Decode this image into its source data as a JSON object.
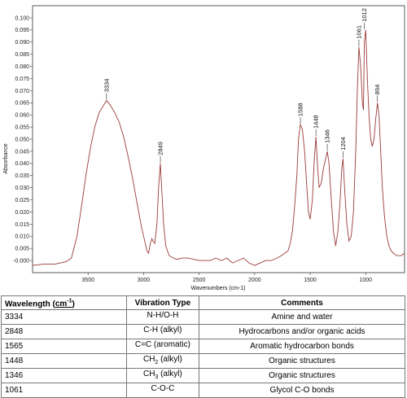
{
  "chart_data": {
    "type": "line",
    "xlabel": "Wavenumbers (cm-1)",
    "ylabel": "Absorbance",
    "xlim": [
      4000,
      650
    ],
    "ylim": [
      -0.005,
      0.105
    ],
    "x_ticks": [
      3500,
      3000,
      2500,
      2000,
      1500,
      1000
    ],
    "y_ticks": [
      -0.0,
      0.005,
      0.01,
      0.015,
      0.02,
      0.025,
      0.03,
      0.035,
      0.04,
      0.045,
      0.05,
      0.055,
      0.06,
      0.065,
      0.07,
      0.075,
      0.08,
      0.085,
      0.09,
      0.095,
      0.1
    ],
    "y_tick_labels": [
      "-0.000",
      "0.005",
      "0.010",
      "0.015",
      "0.020",
      "0.025",
      "0.030",
      "0.035",
      "0.040",
      "0.045",
      "0.050",
      "0.055",
      "0.060",
      "0.065",
      "0.070",
      "0.075",
      "0.080",
      "0.085",
      "0.090",
      "0.095",
      "0.100"
    ],
    "grid": false,
    "line_color": "#9b3a3a",
    "series": [
      {
        "x": [
          4000,
          3900,
          3800,
          3700,
          3650,
          3600,
          3560,
          3520,
          3480,
          3440,
          3400,
          3360,
          3334,
          3300,
          3260,
          3220,
          3180,
          3140,
          3100,
          3060,
          3020,
          2990,
          2970,
          2955,
          2940,
          2925,
          2915,
          2900,
          2880,
          2865,
          2849,
          2835,
          2820,
          2800,
          2770,
          2730,
          2700,
          2650,
          2600,
          2500,
          2400,
          2350,
          2300,
          2250,
          2200,
          2150,
          2100,
          2050,
          2000,
          1950,
          1900,
          1850,
          1800,
          1760,
          1730,
          1700,
          1680,
          1660,
          1640,
          1620,
          1605,
          1588,
          1570,
          1550,
          1530,
          1515,
          1500,
          1480,
          1465,
          1448,
          1435,
          1420,
          1400,
          1380,
          1360,
          1346,
          1330,
          1310,
          1290,
          1270,
          1250,
          1230,
          1215,
          1204,
          1190,
          1170,
          1150,
          1130,
          1110,
          1090,
          1075,
          1061,
          1045,
          1030,
          1020,
          1012,
          1000,
          985,
          970,
          955,
          940,
          925,
          910,
          894,
          880,
          865,
          850,
          830,
          810,
          790,
          770,
          750,
          720,
          700,
          680,
          650
        ],
        "y": [
          -0.002,
          -0.0015,
          -0.0015,
          -0.0005,
          0.001,
          0.01,
          0.022,
          0.035,
          0.046,
          0.055,
          0.061,
          0.064,
          0.066,
          0.064,
          0.061,
          0.057,
          0.051,
          0.043,
          0.034,
          0.024,
          0.014,
          0.008,
          0.004,
          0.003,
          0.007,
          0.009,
          0.008,
          0.007,
          0.015,
          0.03,
          0.04,
          0.028,
          0.015,
          0.006,
          0.002,
          0.001,
          0.0005,
          0.001,
          0.001,
          0.0,
          0.0,
          0.001,
          0.0,
          0.001,
          -0.001,
          0.0,
          0.001,
          -0.001,
          -0.002,
          -0.001,
          0.0,
          0.0,
          0.001,
          0.002,
          0.003,
          0.004,
          0.007,
          0.012,
          0.022,
          0.035,
          0.05,
          0.056,
          0.054,
          0.045,
          0.03,
          0.02,
          0.017,
          0.025,
          0.04,
          0.051,
          0.04,
          0.03,
          0.032,
          0.038,
          0.042,
          0.045,
          0.04,
          0.025,
          0.012,
          0.006,
          0.012,
          0.025,
          0.038,
          0.042,
          0.03,
          0.015,
          0.008,
          0.01,
          0.02,
          0.045,
          0.07,
          0.088,
          0.08,
          0.065,
          0.062,
          0.09,
          0.095,
          0.075,
          0.06,
          0.05,
          0.047,
          0.05,
          0.058,
          0.065,
          0.06,
          0.045,
          0.03,
          0.018,
          0.01,
          0.006,
          0.004,
          0.003,
          0.002,
          0.002,
          0.002,
          0.003
        ]
      }
    ],
    "peak_labels": [
      {
        "x": 3334,
        "y": 0.066,
        "label": "3334"
      },
      {
        "x": 2849,
        "y": 0.04,
        "label": "2849"
      },
      {
        "x": 1588,
        "y": 0.056,
        "label": "1588"
      },
      {
        "x": 1448,
        "y": 0.051,
        "label": "1448"
      },
      {
        "x": 1346,
        "y": 0.045,
        "label": "1346"
      },
      {
        "x": 1204,
        "y": 0.042,
        "label": "1204"
      },
      {
        "x": 1061,
        "y": 0.088,
        "label": "1061"
      },
      {
        "x": 1012,
        "y": 0.095,
        "label": "1012"
      },
      {
        "x": 894,
        "y": 0.065,
        "label": "894"
      }
    ]
  },
  "table": {
    "headers": {
      "wavelength": "Wavelength (",
      "unit": "cm",
      "unit_exp": "-1",
      "close": ")",
      "vibration": "Vibration Type",
      "comments": "Comments"
    },
    "rows": [
      {
        "wavelength": "3334",
        "vib": "N-H/O-H",
        "vib_sub": "",
        "vib_tail": "",
        "comment": "Amine and water"
      },
      {
        "wavelength": "2848",
        "vib": "C-H (alkyl)",
        "vib_sub": "",
        "vib_tail": "",
        "comment": "Hydrocarbons and/or organic acids"
      },
      {
        "wavelength": "1565",
        "vib": "C=C (aromatic)",
        "vib_sub": "",
        "vib_tail": "",
        "comment": "Aromatic hydrocarbon bonds"
      },
      {
        "wavelength": "1448",
        "vib": "CH",
        "vib_sub": "2",
        "vib_tail": " (alkyl)",
        "comment": "Organic structures"
      },
      {
        "wavelength": "1346",
        "vib": "CH",
        "vib_sub": "3",
        "vib_tail": " (alkyl)",
        "comment": "Organic structures"
      },
      {
        "wavelength": "1061",
        "vib": "C-O-C",
        "vib_sub": "",
        "vib_tail": "",
        "comment": "Glycol C-O bonds"
      }
    ]
  }
}
